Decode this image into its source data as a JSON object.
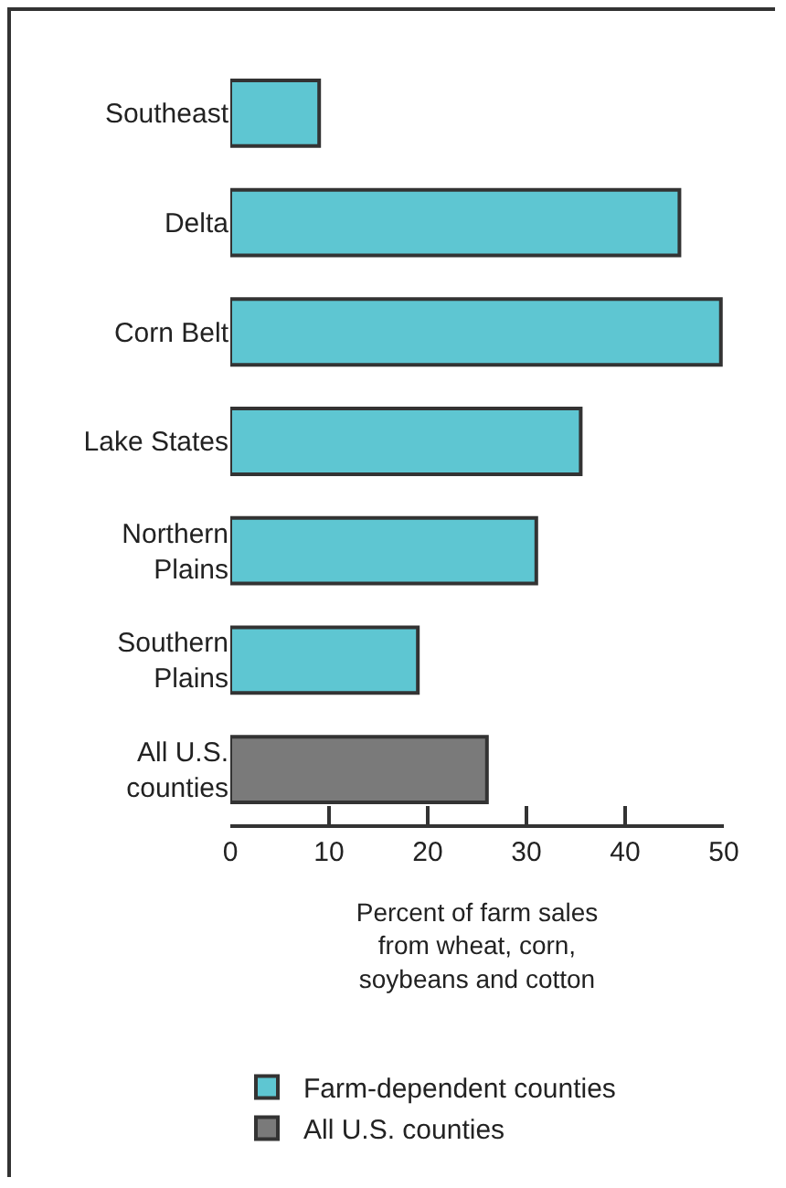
{
  "chart_data": {
    "type": "bar",
    "orientation": "horizontal",
    "categories": [
      "Southeast",
      "Delta",
      "Corn Belt",
      "Lake States",
      "Northern Plains",
      "Southern Plains",
      "All U.S. counties"
    ],
    "series": [
      {
        "name": "Farm-dependent counties",
        "color": "#5ec6d2",
        "values": [
          9,
          45.5,
          49.7,
          35.5,
          31,
          19,
          null
        ]
      },
      {
        "name": "All U.S. counties",
        "color": "#7a7a7a",
        "values": [
          null,
          null,
          null,
          null,
          null,
          null,
          26
        ]
      }
    ],
    "xlabel": "Percent of farm sales from wheat, corn, soybeans and cotton",
    "xlim": [
      0,
      50
    ],
    "xticks": [
      0,
      10,
      20,
      30,
      40,
      50
    ],
    "grid": false,
    "legend": "bottom"
  }
}
